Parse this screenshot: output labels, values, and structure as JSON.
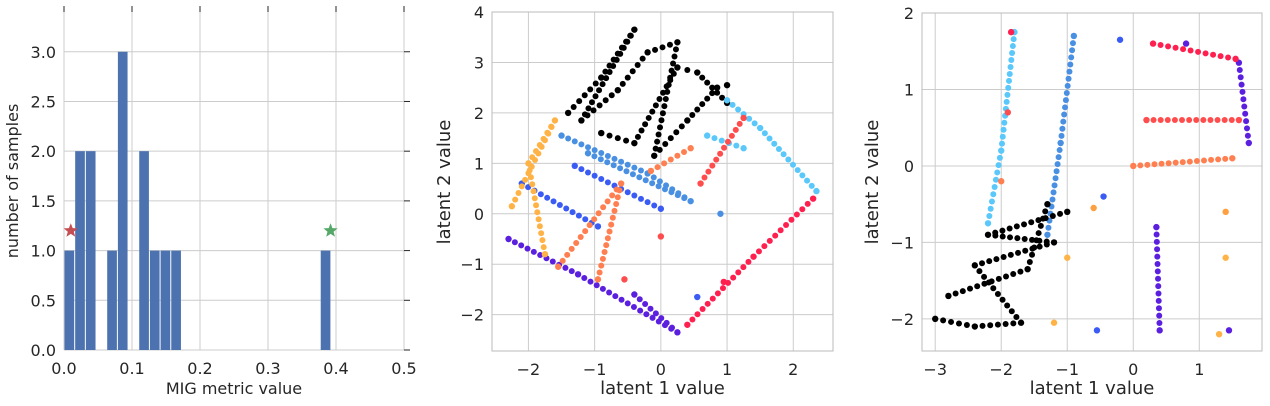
{
  "chart_data": [
    {
      "type": "bar",
      "xlabel": "MIG metric value",
      "ylabel": "number of samples",
      "xlim": [
        0.0,
        0.5
      ],
      "ylim": [
        0.0,
        3.4
      ],
      "xticks": [
        "0.0",
        "0.1",
        "0.2",
        "0.3",
        "0.4",
        "0.5"
      ],
      "yticks": [
        "0.0",
        "0.5",
        "1.0",
        "1.5",
        "2.0",
        "2.5",
        "3.0"
      ],
      "bar_color": "#4c72b0",
      "bin_width": 0.0157,
      "bars": [
        {
          "x": 0.0,
          "value": 1
        },
        {
          "x": 0.0157,
          "value": 2
        },
        {
          "x": 0.0314,
          "value": 2
        },
        {
          "x": 0.0628,
          "value": 1
        },
        {
          "x": 0.0785,
          "value": 3
        },
        {
          "x": 0.1099,
          "value": 2
        },
        {
          "x": 0.1256,
          "value": 1
        },
        {
          "x": 0.1413,
          "value": 1
        },
        {
          "x": 0.157,
          "value": 1
        },
        {
          "x": 0.3768,
          "value": 1
        }
      ],
      "markers": [
        {
          "x": 0.01,
          "y": 1.2,
          "symbol": "star",
          "color": "#c44e52"
        },
        {
          "x": 0.392,
          "y": 1.2,
          "symbol": "star",
          "color": "#55a868"
        }
      ],
      "grid": true
    },
    {
      "type": "scatter",
      "xlabel": "latent 1 value",
      "ylabel": "latent 2 value",
      "xlim": [
        -2.55,
        2.6
      ],
      "ylim": [
        -2.72,
        4.0
      ],
      "xticks": [
        "−2",
        "−1",
        "0",
        "1",
        "2"
      ],
      "yticks": [
        "−2",
        "−1",
        "0",
        "1",
        "2",
        "3",
        "4"
      ],
      "grid": true,
      "series": [
        {
          "color": "#000000",
          "points": [
            [
              -1.4,
              2.0
            ],
            [
              -0.9,
              2.7
            ],
            [
              -0.4,
              3.65
            ],
            [
              -1.2,
              1.85
            ],
            [
              -0.65,
              2.45
            ],
            [
              -0.2,
              3.2
            ],
            [
              0.25,
              3.4
            ],
            [
              -0.1,
              1.15
            ],
            [
              0.4,
              1.85
            ],
            [
              0.85,
              2.5
            ],
            [
              1.0,
              2.55
            ],
            [
              -0.9,
              1.6
            ],
            [
              -0.4,
              1.4
            ],
            [
              0.25,
              2.9
            ],
            [
              0.55,
              2.8
            ],
            [
              1.0,
              2.2
            ]
          ]
        },
        {
          "color": "#5ac8fa",
          "points": [
            [
              1.0,
              2.25
            ],
            [
              1.5,
              1.7
            ],
            [
              2.35,
              0.45
            ],
            [
              0.7,
              1.55
            ],
            [
              1.25,
              1.3
            ]
          ]
        },
        {
          "color": "#4a90e2",
          "points": [
            [
              -1.5,
              1.55
            ],
            [
              -0.2,
              0.8
            ],
            [
              0.45,
              0.25
            ],
            [
              -1.1,
              1.2
            ],
            [
              0.9,
              0.0
            ]
          ]
        },
        {
          "color": "#3b5bf5",
          "points": [
            [
              -2.1,
              0.6
            ],
            [
              -0.95,
              -0.25
            ],
            [
              0.55,
              -1.65
            ],
            [
              -1.3,
              0.95
            ],
            [
              0.0,
              0.1
            ]
          ]
        },
        {
          "color": "#5b1fe0",
          "points": [
            [
              -2.3,
              -0.5
            ],
            [
              -1.25,
              -1.2
            ],
            [
              0.25,
              -2.35
            ],
            [
              -0.4,
              -1.6
            ]
          ]
        },
        {
          "color": "#ff7f50",
          "points": [
            [
              -1.55,
              -1.05
            ],
            [
              -0.6,
              0.6
            ],
            [
              -0.95,
              -1.3
            ],
            [
              -0.15,
              0.85
            ],
            [
              0.45,
              1.3
            ]
          ]
        },
        {
          "color": "#ff4d4d",
          "points": [
            [
              -0.55,
              -1.3
            ],
            [
              0.6,
              0.6
            ],
            [
              1.25,
              1.9
            ],
            [
              0.0,
              -0.45
            ]
          ]
        },
        {
          "color": "#ff2050",
          "points": [
            [
              0.4,
              -2.2
            ],
            [
              1.4,
              -0.85
            ],
            [
              2.3,
              0.3
            ],
            [
              0.95,
              -1.35
            ]
          ]
        },
        {
          "color": "#ffb347",
          "points": [
            [
              -2.25,
              0.15
            ],
            [
              -1.6,
              1.85
            ],
            [
              -2.0,
              1.0
            ],
            [
              -1.75,
              -0.8
            ]
          ]
        }
      ]
    },
    {
      "type": "scatter",
      "xlabel": "latent 1 value",
      "ylabel": "latent 2 value",
      "xlim": [
        -3.2,
        1.95
      ],
      "ylim": [
        -2.42,
        2.0
      ],
      "xticks": [
        "−3",
        "−2",
        "−1",
        "0",
        "1"
      ],
      "yticks": [
        "−2",
        "−1",
        "0",
        "1",
        "2"
      ],
      "grid": true,
      "series": [
        {
          "color": "#5ac8fa",
          "points": [
            [
              -1.8,
              1.75
            ],
            [
              -2.0,
              0.2
            ],
            [
              -2.2,
              -0.75
            ]
          ]
        },
        {
          "color": "#4a90e2",
          "points": [
            [
              -0.9,
              1.7
            ],
            [
              -1.1,
              0.3
            ],
            [
              -1.3,
              -0.9
            ]
          ]
        },
        {
          "color": "#3b5bf5",
          "points": [
            [
              -0.2,
              1.65
            ],
            [
              -0.45,
              -0.4
            ],
            [
              -0.55,
              -2.15
            ]
          ]
        },
        {
          "color": "#5b1fe0",
          "points": [
            [
              0.8,
              1.6
            ],
            [
              0.35,
              -0.8
            ],
            [
              0.4,
              -2.15
            ],
            [
              1.6,
              1.35
            ],
            [
              1.75,
              0.3
            ],
            [
              1.45,
              -2.15
            ]
          ]
        },
        {
          "color": "#ff2050",
          "points": [
            [
              -1.85,
              1.75
            ],
            [
              0.3,
              1.6
            ],
            [
              1.55,
              1.4
            ]
          ]
        },
        {
          "color": "#ff4d4d",
          "points": [
            [
              -1.9,
              0.7
            ],
            [
              0.2,
              0.6
            ],
            [
              1.6,
              0.6
            ]
          ]
        },
        {
          "color": "#ff7f50",
          "points": [
            [
              -2.0,
              -0.2
            ],
            [
              0.0,
              0.0
            ],
            [
              1.5,
              0.1
            ]
          ]
        },
        {
          "color": "#ffa040",
          "points": [
            [
              -0.6,
              -0.55
            ],
            [
              1.4,
              -0.6
            ]
          ]
        },
        {
          "color": "#ffb347",
          "points": [
            [
              -1.0,
              -1.2
            ],
            [
              1.4,
              -1.2
            ],
            [
              -1.2,
              -2.05
            ],
            [
              1.3,
              -2.2
            ]
          ]
        },
        {
          "color": "#000000",
          "points": [
            [
              -3.0,
              -2.0
            ],
            [
              -2.4,
              -2.1
            ],
            [
              -1.7,
              -2.05
            ],
            [
              -2.4,
              -1.3
            ],
            [
              -1.2,
              -1.0
            ],
            [
              -2.2,
              -0.9
            ],
            [
              -1.0,
              -0.6
            ],
            [
              -2.8,
              -1.7
            ],
            [
              -1.6,
              -1.35
            ],
            [
              -1.3,
              -0.5
            ]
          ]
        }
      ]
    }
  ]
}
